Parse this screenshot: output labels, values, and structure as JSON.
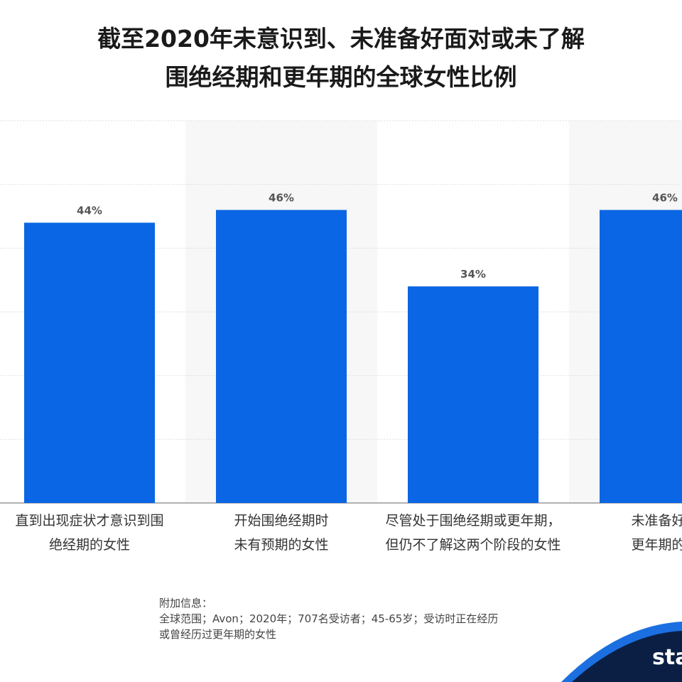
{
  "chart_data": {
    "type": "bar",
    "title_lines": [
      "截至2020年未意识到、未准备好面对或未了解",
      "围绝经期和更年期的全球女性比例"
    ],
    "categories": [
      [
        "直到出现症状才意识到围",
        "绝经期的女性"
      ],
      [
        "开始围绝经期时",
        "未有预期的女性"
      ],
      [
        "尽管处于围绝经期或更年期，",
        "但仍不了解这两个阶段的女性"
      ],
      [
        "未准备好面",
        "更年期的女"
      ]
    ],
    "values": [
      44,
      46,
      34,
      46
    ],
    "data_labels": [
      "44%",
      "46%",
      "34%",
      "46%"
    ],
    "ylim": [
      0,
      60
    ],
    "grid": true,
    "bar_color": "#0a66e4"
  },
  "notes": {
    "heading": "附加信息：",
    "lines": [
      "全球范围；Avon；2020年；707名受访者；45-65岁；受访时正在经历",
      "或曾经历过更年期的女性"
    ]
  },
  "brand": {
    "text": "sta",
    "colors": {
      "dark": "#0b1f44",
      "accent": "#1b6fe0"
    }
  }
}
